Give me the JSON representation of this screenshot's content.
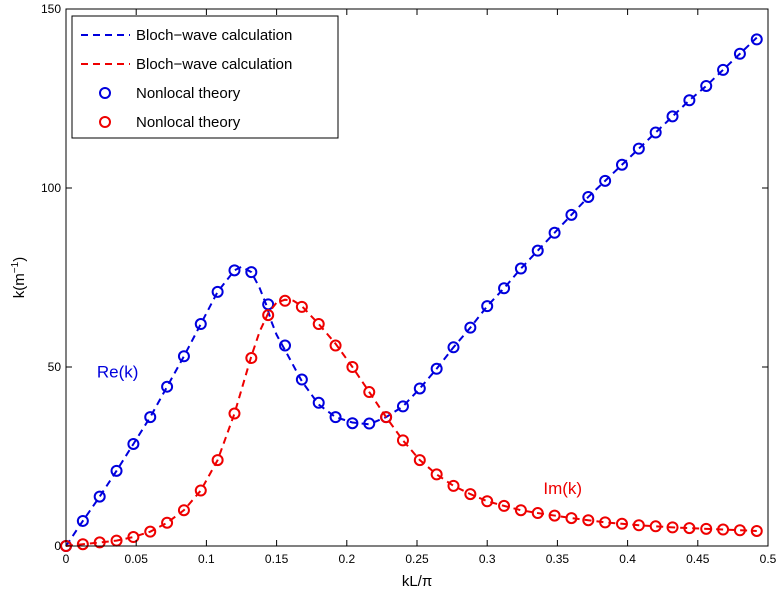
{
  "chart_data": {
    "type": "line",
    "title": "",
    "xlabel": "kL/π",
    "ylabel_main": "k(m",
    "ylabel_sup": "−1",
    "ylabel_close": ")",
    "xlim": [
      0,
      0.5
    ],
    "ylim": [
      0,
      150
    ],
    "xticks": [
      0,
      0.05,
      0.1,
      0.15,
      0.2,
      0.25,
      0.3,
      0.35,
      0.4,
      0.45,
      0.5
    ],
    "yticks": [
      0,
      50,
      100,
      150
    ],
    "xtick_labels": [
      "0",
      "0.05",
      "0.1",
      "0.15",
      "0.2",
      "0.25",
      "0.3",
      "0.35",
      "0.4",
      "0.45",
      "0.5"
    ],
    "ytick_labels": [
      "0",
      "50",
      "100",
      "150"
    ],
    "grid": false,
    "legend_position": "top-left",
    "legend": [
      {
        "label": "Bloch−wave calculation",
        "style": "dashed-line",
        "color": "#0000dd"
      },
      {
        "label": "Bloch−wave calculation",
        "style": "dashed-line",
        "color": "#ee0000"
      },
      {
        "label": "Nonlocal theory",
        "style": "circle-marker",
        "color": "#0000dd"
      },
      {
        "label": "Nonlocal theory",
        "style": "circle-marker",
        "color": "#ee0000"
      }
    ],
    "annotations": [
      {
        "text": "Re(k)",
        "x": 0.022,
        "y": 47,
        "color": "#0000dd"
      },
      {
        "text": "Im(k)",
        "x": 0.34,
        "y": 14.5,
        "color": "#ee0000"
      }
    ],
    "series": [
      {
        "part": "Re(k)",
        "color": "#0000dd",
        "line_x": [
          0,
          0.012,
          0.024,
          0.036,
          0.048,
          0.06,
          0.072,
          0.084,
          0.096,
          0.108,
          0.12,
          0.125,
          0.132,
          0.138,
          0.143,
          0.146,
          0.15,
          0.157,
          0.168,
          0.18,
          0.192,
          0.204,
          0.216,
          0.228,
          0.24,
          0.252,
          0.264,
          0.276,
          0.288,
          0.3,
          0.312,
          0.324,
          0.336,
          0.348,
          0.36,
          0.372,
          0.384,
          0.396,
          0.408,
          0.42,
          0.432,
          0.444,
          0.456,
          0.468,
          0.48,
          0.492
        ],
        "line_y": [
          0,
          7,
          13.8,
          21,
          28.5,
          36,
          44.5,
          53,
          62,
          71,
          77,
          78,
          76.5,
          72,
          67,
          63,
          59,
          54,
          46,
          39.5,
          36,
          34.5,
          34,
          36,
          39,
          44,
          49.5,
          55.5,
          61,
          67,
          72,
          77.5,
          82.5,
          87.5,
          92.5,
          97.5,
          102,
          106.5,
          111,
          115.5,
          120,
          124.5,
          128.5,
          133,
          137.5,
          142
        ],
        "markers_x": [
          0,
          0.012,
          0.024,
          0.036,
          0.048,
          0.06,
          0.072,
          0.084,
          0.096,
          0.108,
          0.12,
          0.132,
          0.144,
          0.156,
          0.168,
          0.18,
          0.192,
          0.204,
          0.216,
          0.228,
          0.24,
          0.252,
          0.264,
          0.276,
          0.288,
          0.3,
          0.312,
          0.324,
          0.336,
          0.348,
          0.36,
          0.372,
          0.384,
          0.396,
          0.408,
          0.42,
          0.432,
          0.444,
          0.456,
          0.468,
          0.48,
          0.492
        ],
        "markers_y": [
          0,
          7,
          13.8,
          21,
          28.5,
          36,
          44.5,
          53,
          62,
          71,
          77,
          76.5,
          67.5,
          56,
          46.5,
          40,
          36,
          34.3,
          34.2,
          36,
          39,
          44,
          49.5,
          55.5,
          61,
          67,
          72,
          77.5,
          82.5,
          87.5,
          92.5,
          97.5,
          102,
          106.5,
          111,
          115.5,
          120,
          124.5,
          128.5,
          133,
          137.5,
          141.5
        ]
      },
      {
        "part": "Im(k)",
        "color": "#ee0000",
        "line_x": [
          0,
          0.012,
          0.024,
          0.036,
          0.048,
          0.06,
          0.072,
          0.084,
          0.096,
          0.108,
          0.12,
          0.132,
          0.138,
          0.144,
          0.15,
          0.156,
          0.162,
          0.168,
          0.18,
          0.192,
          0.204,
          0.216,
          0.228,
          0.24,
          0.252,
          0.264,
          0.276,
          0.288,
          0.3,
          0.312,
          0.324,
          0.336,
          0.348,
          0.36,
          0.372,
          0.384,
          0.396,
          0.408,
          0.42,
          0.432,
          0.444,
          0.456,
          0.468,
          0.48,
          0.492
        ],
        "line_y": [
          0,
          0.5,
          1,
          1.5,
          2.5,
          4,
          6.5,
          10,
          15.5,
          24,
          37,
          53,
          60,
          65,
          68,
          68.8,
          68.5,
          67,
          62,
          56.5,
          50,
          43,
          36,
          29.5,
          24,
          20,
          16.8,
          14.5,
          12.5,
          11.2,
          10,
          9.2,
          8.5,
          7.8,
          7.2,
          6.6,
          6.2,
          5.8,
          5.5,
          5.2,
          5,
          4.8,
          4.6,
          4.4,
          4.2
        ],
        "markers_x": [
          0,
          0.012,
          0.024,
          0.036,
          0.048,
          0.06,
          0.072,
          0.084,
          0.096,
          0.108,
          0.12,
          0.132,
          0.144,
          0.156,
          0.168,
          0.18,
          0.192,
          0.204,
          0.216,
          0.228,
          0.24,
          0.252,
          0.264,
          0.276,
          0.288,
          0.3,
          0.312,
          0.324,
          0.336,
          0.348,
          0.36,
          0.372,
          0.384,
          0.396,
          0.408,
          0.42,
          0.432,
          0.444,
          0.456,
          0.468,
          0.48,
          0.492
        ],
        "markers_y": [
          0,
          0.5,
          1,
          1.5,
          2.5,
          4,
          6.5,
          10,
          15.5,
          24,
          37,
          52.5,
          64.5,
          68.5,
          66.8,
          62,
          56,
          50,
          43,
          36,
          29.5,
          24,
          20,
          16.8,
          14.5,
          12.5,
          11.2,
          10,
          9.2,
          8.5,
          7.8,
          7.2,
          6.6,
          6.2,
          5.8,
          5.5,
          5.2,
          5,
          4.8,
          4.6,
          4.4,
          4.2
        ]
      }
    ]
  }
}
